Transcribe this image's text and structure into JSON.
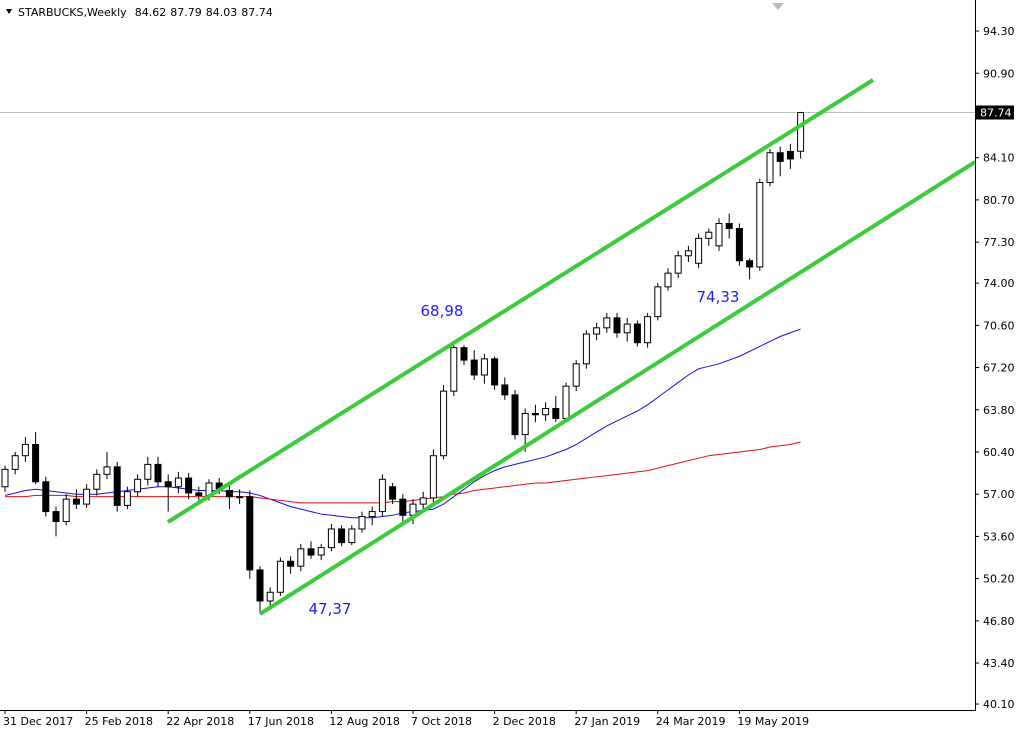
{
  "chart_data": {
    "type": "candlestick",
    "title": "STARBUCKS,Weekly",
    "ohlc": [
      84.62,
      87.79,
      84.03,
      87.74
    ],
    "categories": [
      "31 Dec 2017",
      null,
      null,
      null,
      null,
      null,
      null,
      null,
      "25 Feb 2018",
      null,
      null,
      null,
      null,
      null,
      null,
      null,
      "22 Apr 2018",
      null,
      null,
      null,
      null,
      null,
      null,
      null,
      "17 Jun 2018",
      null,
      null,
      null,
      null,
      null,
      null,
      null,
      "12 Aug 2018",
      null,
      null,
      null,
      null,
      null,
      null,
      null,
      "7 Oct 2018",
      null,
      null,
      null,
      null,
      null,
      null,
      null,
      "2 Dec 2018",
      null,
      null,
      null,
      null,
      null,
      null,
      null,
      "27 Jan 2019",
      null,
      null,
      null,
      null,
      null,
      null,
      null,
      "24 Mar 2019",
      null,
      null,
      null,
      null,
      null,
      null,
      null,
      "19 May 2019",
      null,
      null,
      null,
      null,
      null,
      null
    ],
    "open": [
      57.6,
      59.0,
      60.1,
      61.0,
      58.0,
      55.6,
      54.8,
      56.6,
      56.2,
      57.4,
      58.6,
      59.2,
      56.1,
      57.2,
      58.2,
      59.4,
      58.0,
      57.6,
      58.3,
      57.1,
      56.9,
      57.9,
      57.3,
      56.8,
      56.8,
      50.9,
      48.4,
      49.1,
      51.6,
      51.2,
      52.6,
      52.1,
      52.7,
      54.2,
      53.1,
      54.2,
      55.2,
      55.6,
      57.6,
      56.6,
      55.3,
      56.2,
      56.7,
      60.1,
      65.3,
      68.8,
      67.8,
      66.6,
      67.9,
      65.8,
      65.0,
      61.8,
      63.5,
      63.4,
      63.9,
      63.1,
      65.7,
      67.5,
      69.9,
      70.4,
      71.2,
      70.0,
      70.7,
      69.2,
      71.3,
      73.7,
      74.8,
      76.2,
      75.6,
      77.6,
      77.0,
      78.8,
      78.4,
      75.8,
      75.3,
      82.1,
      84.5,
      84.6,
      84.62
    ],
    "high": [
      59.3,
      60.4,
      61.6,
      62.0,
      58.4,
      56.0,
      57.0,
      57.4,
      57.8,
      59.0,
      60.4,
      59.6,
      57.6,
      58.6,
      60.0,
      60.0,
      58.6,
      58.8,
      58.7,
      57.6,
      58.2,
      58.3,
      57.9,
      57.4,
      57.3,
      51.2,
      49.5,
      51.9,
      52.0,
      53.0,
      53.2,
      53.0,
      54.6,
      54.5,
      54.5,
      55.6,
      56.0,
      58.6,
      57.9,
      57.0,
      56.6,
      57.2,
      60.6,
      65.8,
      69.0,
      69.0,
      68.6,
      68.3,
      68.1,
      66.4,
      65.4,
      63.9,
      64.2,
      64.4,
      64.9,
      66.0,
      67.8,
      70.2,
      70.8,
      71.6,
      71.6,
      71.2,
      71.0,
      71.6,
      74.0,
      75.2,
      76.6,
      77.0,
      78.0,
      78.4,
      79.2,
      79.6,
      78.8,
      76.0,
      82.4,
      84.8,
      85.0,
      85.2,
      87.79
    ],
    "low": [
      57.2,
      58.6,
      59.6,
      57.8,
      55.2,
      53.6,
      54.5,
      55.8,
      55.9,
      56.9,
      58.2,
      55.6,
      55.8,
      56.8,
      57.7,
      57.6,
      55.6,
      57.1,
      56.6,
      56.5,
      56.5,
      57.0,
      55.8,
      56.2,
      50.2,
      47.4,
      48.0,
      48.8,
      50.6,
      50.8,
      51.8,
      51.7,
      52.4,
      52.8,
      52.9,
      53.9,
      54.5,
      55.2,
      56.2,
      54.8,
      54.6,
      55.8,
      56.2,
      59.8,
      64.9,
      67.4,
      66.2,
      65.9,
      65.4,
      64.6,
      61.4,
      60.4,
      62.8,
      62.9,
      62.8,
      62.9,
      65.3,
      67.1,
      69.4,
      70.0,
      69.6,
      69.3,
      68.9,
      68.8,
      71.0,
      73.4,
      74.4,
      75.7,
      75.2,
      77.0,
      76.6,
      77.6,
      75.4,
      74.3,
      75.0,
      81.8,
      82.6,
      83.2,
      84.03
    ],
    "close": [
      59.0,
      60.1,
      61.0,
      58.0,
      55.6,
      54.8,
      56.6,
      56.2,
      57.4,
      58.6,
      59.2,
      56.1,
      57.2,
      58.2,
      59.4,
      58.0,
      57.6,
      58.3,
      57.1,
      56.9,
      57.9,
      57.3,
      56.8,
      56.8,
      50.9,
      48.4,
      49.1,
      51.6,
      51.2,
      52.6,
      52.1,
      52.7,
      54.2,
      53.1,
      54.2,
      55.2,
      55.6,
      58.2,
      56.6,
      55.3,
      56.2,
      56.7,
      60.1,
      65.3,
      68.8,
      67.8,
      66.6,
      67.9,
      65.8,
      65.0,
      61.8,
      63.5,
      63.4,
      63.9,
      63.1,
      65.7,
      67.5,
      69.9,
      70.4,
      71.2,
      70.0,
      70.7,
      69.2,
      71.3,
      73.7,
      74.8,
      76.2,
      76.6,
      77.6,
      78.1,
      78.8,
      78.4,
      75.8,
      75.3,
      82.1,
      84.5,
      83.8,
      84.0,
      87.74
    ],
    "moving_averages": [
      {
        "color": "#1010e0",
        "values": [
          56.9,
          57.1,
          57.3,
          57.4,
          57.3,
          57.2,
          57.1,
          57.0,
          57.0,
          57.0,
          57.1,
          57.2,
          57.3,
          57.4,
          57.5,
          57.6,
          57.6,
          57.5,
          57.4,
          57.3,
          57.3,
          57.3,
          57.2,
          57.2,
          57.1,
          56.9,
          56.6,
          56.3,
          56.0,
          55.8,
          55.6,
          55.4,
          55.3,
          55.2,
          55.1,
          55.1,
          55.1,
          55.2,
          55.3,
          55.5,
          55.6,
          55.7,
          55.8,
          56.2,
          56.8,
          57.4,
          58.0,
          58.5,
          58.9,
          59.2,
          59.4,
          59.6,
          59.8,
          60.0,
          60.3,
          60.6,
          61.0,
          61.5,
          62.0,
          62.5,
          62.9,
          63.3,
          63.7,
          64.2,
          64.8,
          65.4,
          66.0,
          66.6,
          67.1,
          67.3,
          67.5,
          67.8,
          68.1,
          68.5,
          68.9,
          69.3,
          69.7,
          70.0,
          70.3
        ]
      },
      {
        "color": "#e01010",
        "values": [
          56.8,
          56.8,
          56.8,
          56.9,
          56.9,
          56.9,
          56.9,
          56.8,
          56.8,
          56.8,
          56.8,
          56.8,
          56.8,
          56.8,
          56.8,
          56.8,
          56.8,
          56.8,
          56.8,
          56.8,
          56.8,
          56.8,
          56.8,
          56.8,
          56.8,
          56.7,
          56.6,
          56.5,
          56.4,
          56.3,
          56.3,
          56.3,
          56.3,
          56.3,
          56.3,
          56.3,
          56.3,
          56.3,
          56.4,
          56.4,
          56.5,
          56.6,
          56.7,
          56.8,
          57.0,
          57.1,
          57.3,
          57.4,
          57.5,
          57.6,
          57.7,
          57.8,
          57.9,
          57.9,
          58.0,
          58.1,
          58.2,
          58.3,
          58.4,
          58.5,
          58.6,
          58.7,
          58.8,
          58.9,
          59.1,
          59.3,
          59.5,
          59.7,
          59.9,
          60.1,
          60.2,
          60.3,
          60.4,
          60.5,
          60.6,
          60.8,
          60.9,
          61.0,
          61.2
        ]
      }
    ],
    "last_price": 87.74,
    "annotations": [
      "68,98",
      "74,33",
      "47,37"
    ],
    "ylim": [
      39.62,
      96.8
    ],
    "yticks": [
      {
        "value": 94.3,
        "label": "94.30"
      },
      {
        "value": 90.9,
        "label": "90.90"
      },
      {
        "value": 84.1,
        "label": "84.10"
      },
      {
        "value": 80.7,
        "label": "80.70"
      },
      {
        "value": 77.3,
        "label": "77.30"
      },
      {
        "value": 74,
        "label": "74.00"
      },
      {
        "value": 70.6,
        "label": "70.60"
      },
      {
        "value": 67.2,
        "label": "67.20"
      },
      {
        "value": 63.8,
        "label": "63.80"
      },
      {
        "value": 60.4,
        "label": "60.40"
      },
      {
        "value": 57,
        "label": "57.00"
      },
      {
        "value": 53.6,
        "label": "53.60"
      },
      {
        "value": 50.2,
        "label": "50.20"
      },
      {
        "value": 46.8,
        "label": "46.80"
      },
      {
        "value": 43.4,
        "label": "43.40"
      },
      {
        "value": 40.1,
        "label": "40.10"
      }
    ]
  }
}
